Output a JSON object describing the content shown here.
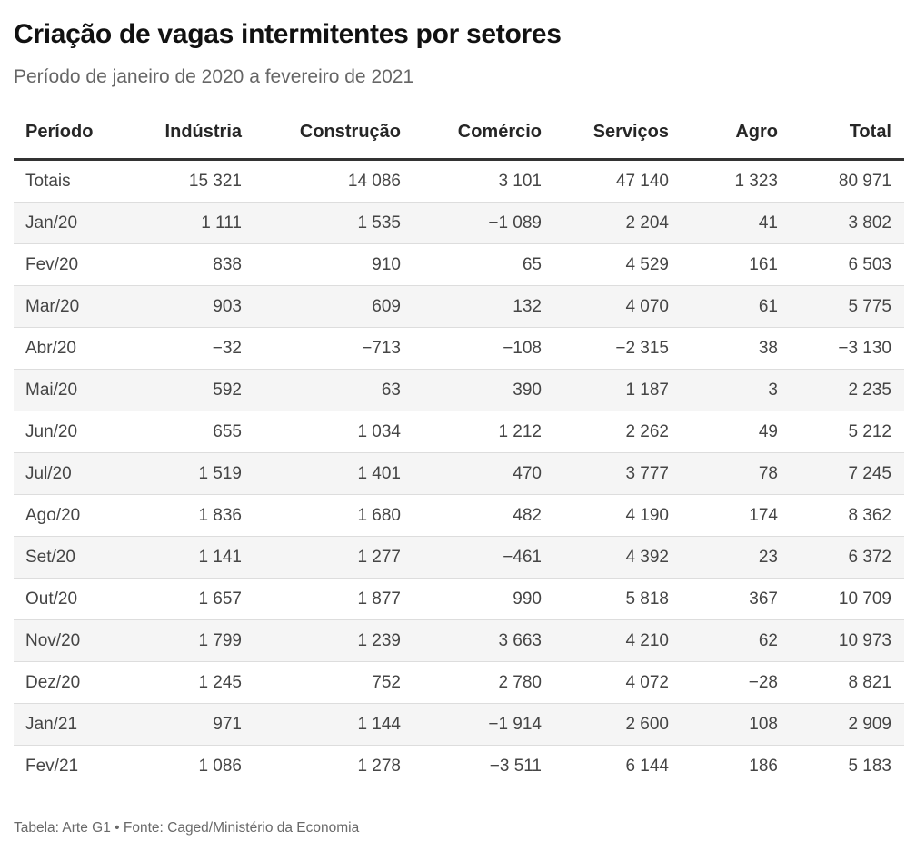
{
  "header": {
    "title": "Criação de vagas intermitentes por setores",
    "subtitle": "Período de janeiro de 2020 a fevereiro de 2021"
  },
  "chart_data": {
    "type": "table",
    "columns": [
      "Período",
      "Indústria",
      "Construção",
      "Comércio",
      "Serviços",
      "Agro",
      "Total"
    ],
    "rows": [
      [
        "Totais",
        "15 321",
        "14 086",
        "3 101",
        "47 140",
        "1 323",
        "80 971"
      ],
      [
        "Jan/20",
        "1 111",
        "1 535",
        "−1 089",
        "2 204",
        "41",
        "3 802"
      ],
      [
        "Fev/20",
        "838",
        "910",
        "65",
        "4 529",
        "161",
        "6 503"
      ],
      [
        "Mar/20",
        "903",
        "609",
        "132",
        "4 070",
        "61",
        "5 775"
      ],
      [
        "Abr/20",
        "−32",
        "−713",
        "−108",
        "−2 315",
        "38",
        "−3 130"
      ],
      [
        "Mai/20",
        "592",
        "63",
        "390",
        "1 187",
        "3",
        "2 235"
      ],
      [
        "Jun/20",
        "655",
        "1 034",
        "1 212",
        "2 262",
        "49",
        "5 212"
      ],
      [
        "Jul/20",
        "1 519",
        "1 401",
        "470",
        "3 777",
        "78",
        "7 245"
      ],
      [
        "Ago/20",
        "1 836",
        "1 680",
        "482",
        "4 190",
        "174",
        "8 362"
      ],
      [
        "Set/20",
        "1 141",
        "1 277",
        "−461",
        "4 392",
        "23",
        "6 372"
      ],
      [
        "Out/20",
        "1 657",
        "1 877",
        "990",
        "5 818",
        "367",
        "10 709"
      ],
      [
        "Nov/20",
        "1 799",
        "1 239",
        "3 663",
        "4 210",
        "62",
        "10 973"
      ],
      [
        "Dez/20",
        "1 245",
        "752",
        "2 780",
        "4 072",
        "−28",
        "8 821"
      ],
      [
        "Jan/21",
        "971",
        "1 144",
        "−1 914",
        "2 600",
        "108",
        "2 909"
      ],
      [
        "Fev/21",
        "1 086",
        "1 278",
        "−3 511",
        "6 144",
        "186",
        "5 183"
      ]
    ],
    "numbers_note": "thousands separated by space, minus sign U+2212",
    "layout": {
      "first_column_align": "left",
      "numeric_columns_align": "right",
      "striped_rows": "even data rows shaded"
    }
  },
  "footer": {
    "credit": "Tabela: Arte G1 • Fonte: Caged/Ministério da Economia"
  },
  "colors": {
    "title-color": "#111111",
    "subtitle-color": "#666666",
    "header-text": "#262626",
    "body-text": "#454545",
    "stripe": "#f5f5f5",
    "row-border": "#dddddd",
    "head-border": "#333333",
    "footer-text": "#696969"
  }
}
